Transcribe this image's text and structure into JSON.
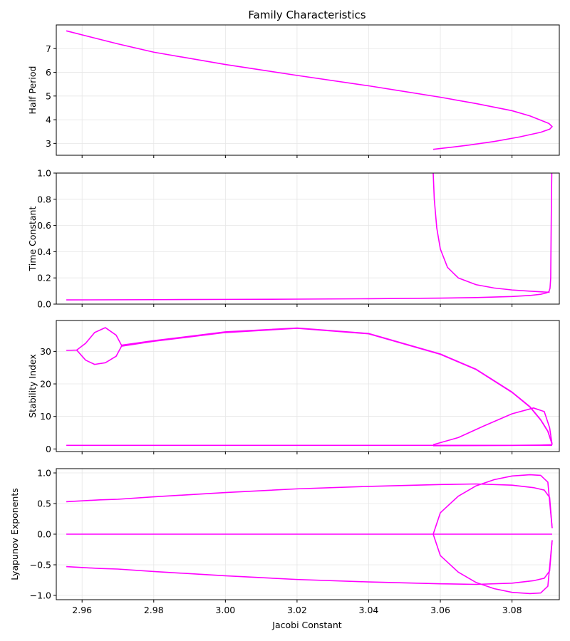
{
  "title": "Family Characteristics",
  "xlabel": "Jacobi Constant",
  "line_color": "#ff00ff",
  "chart_data": [
    {
      "type": "line",
      "ylabel": "Half Period",
      "xlim": [
        2.9528,
        3.0932
      ],
      "ylim": [
        2.5,
        8.0
      ],
      "xticks": [
        2.96,
        2.98,
        3.0,
        3.02,
        3.04,
        3.06,
        3.08
      ],
      "yticks": [
        3,
        4,
        5,
        6,
        7
      ],
      "ytick_labels": [
        "3",
        "4",
        "5",
        "6",
        "7"
      ],
      "series": [
        {
          "x": [
            2.9556,
            2.97,
            2.98,
            3.0,
            3.02,
            3.04,
            3.06,
            3.07,
            3.08,
            3.085,
            3.088,
            3.0903,
            3.0912,
            3.0905,
            3.088,
            3.082,
            3.075,
            3.068,
            3.062,
            3.058
          ],
          "y": [
            7.75,
            7.2,
            6.85,
            6.33,
            5.87,
            5.43,
            4.95,
            4.68,
            4.38,
            4.16,
            3.98,
            3.84,
            3.71,
            3.6,
            3.47,
            3.27,
            3.08,
            2.93,
            2.82,
            2.75
          ]
        }
      ]
    },
    {
      "type": "line",
      "ylabel": "Time Constant",
      "xlim": [
        2.9528,
        3.0932
      ],
      "ylim": [
        0.0,
        1.0
      ],
      "xticks": [
        2.96,
        2.98,
        3.0,
        3.02,
        3.04,
        3.06,
        3.08
      ],
      "yticks": [
        0.0,
        0.2,
        0.4,
        0.6,
        0.8,
        1.0
      ],
      "ytick_labels": [
        "0.0",
        "0.2",
        "0.4",
        "0.6",
        "0.8",
        "1.0"
      ],
      "series": [
        {
          "x": [
            2.9556,
            2.98,
            3.0,
            3.02,
            3.04,
            3.06,
            3.07,
            3.08,
            3.085,
            3.088,
            3.0895,
            3.0903,
            3.0906,
            3.0908,
            3.0909,
            3.091,
            3.0911
          ],
          "y": [
            0.032,
            0.034,
            0.036,
            0.038,
            0.041,
            0.046,
            0.05,
            0.058,
            0.066,
            0.075,
            0.085,
            0.095,
            0.12,
            0.2,
            0.5,
            0.8,
            1.0
          ]
        },
        {
          "x": [
            3.058,
            3.0583,
            3.059,
            3.06,
            3.062,
            3.065,
            3.07,
            3.075,
            3.08,
            3.085,
            3.088,
            3.0905
          ],
          "y": [
            1.0,
            0.8,
            0.58,
            0.42,
            0.28,
            0.2,
            0.148,
            0.123,
            0.108,
            0.099,
            0.094,
            0.09
          ]
        }
      ]
    },
    {
      "type": "line",
      "ylabel": "Stability Index",
      "xlim": [
        2.9528,
        3.0932
      ],
      "ylim": [
        -0.8,
        39.5
      ],
      "xticks": [
        2.96,
        2.98,
        3.0,
        3.02,
        3.04,
        3.06,
        3.08
      ],
      "yticks": [
        0,
        10,
        20,
        30
      ],
      "ytick_labels": [
        "0",
        "10",
        "20",
        "30"
      ],
      "series": [
        {
          "x": [
            2.9556,
            2.9585,
            2.961,
            2.9635,
            2.9665,
            2.9695,
            2.971,
            2.98,
            3.0,
            3.02,
            3.04,
            3.06,
            3.07,
            3.08,
            3.085,
            3.088,
            3.09,
            3.0912
          ],
          "y": [
            30.3,
            30.4,
            32.5,
            35.8,
            37.3,
            35.0,
            31.9,
            33.3,
            36.0,
            37.2,
            35.5,
            29.2,
            24.5,
            17.5,
            13.0,
            9.0,
            5.5,
            1.5
          ]
        },
        {
          "x": [
            2.9585,
            2.961,
            2.9635,
            2.9665,
            2.9695,
            2.971,
            2.98,
            3.0,
            3.02,
            3.04,
            3.06,
            3.07,
            3.08,
            3.085,
            3.088,
            3.09,
            3.0912
          ],
          "y": [
            30.4,
            27.3,
            26.0,
            26.5,
            28.5,
            31.6,
            33.1,
            35.8,
            37.1,
            35.4,
            29.1,
            24.4,
            17.4,
            12.9,
            8.9,
            5.4,
            1.4
          ]
        },
        {
          "x": [
            2.9556,
            2.98,
            3.0,
            3.04,
            3.06,
            3.08,
            3.09,
            3.0912
          ],
          "y": [
            1.1,
            1.1,
            1.1,
            1.1,
            1.1,
            1.1,
            1.1,
            1.1
          ]
        },
        {
          "x": [
            3.058,
            3.065,
            3.072,
            3.08,
            3.086,
            3.089,
            3.0905,
            3.0912
          ],
          "y": [
            1.3,
            3.5,
            7.0,
            10.8,
            12.6,
            11.5,
            6.5,
            1.3
          ]
        },
        {
          "x": [
            3.058,
            3.07,
            3.08,
            3.088,
            3.0912
          ],
          "y": [
            1.0,
            1.05,
            1.1,
            1.2,
            1.3
          ]
        }
      ]
    },
    {
      "type": "line",
      "ylabel": "Lyapunov Exponents",
      "xlim": [
        2.9528,
        3.0932
      ],
      "ylim": [
        -1.07,
        1.07
      ],
      "xticks": [
        2.96,
        2.98,
        3.0,
        3.02,
        3.04,
        3.06,
        3.08
      ],
      "yticks": [
        -1.0,
        -0.5,
        0.0,
        0.5,
        1.0
      ],
      "ytick_labels": [
        "−1.0",
        "−0.5",
        "0.0",
        "0.5",
        "1.0"
      ],
      "series": [
        {
          "x": [
            2.9556,
            2.96,
            2.965,
            2.97,
            2.98,
            3.0,
            3.02,
            3.04,
            3.06,
            3.07,
            3.08,
            3.086,
            3.089,
            3.0905,
            3.0912
          ],
          "y": [
            0.53,
            0.545,
            0.56,
            0.57,
            0.61,
            0.68,
            0.74,
            0.78,
            0.81,
            0.82,
            0.8,
            0.76,
            0.72,
            0.6,
            0.1
          ]
        },
        {
          "x": [
            2.9556,
            2.96,
            2.965,
            2.97,
            2.98,
            3.0,
            3.02,
            3.04,
            3.06,
            3.07,
            3.08,
            3.086,
            3.089,
            3.0905,
            3.0912
          ],
          "y": [
            -0.53,
            -0.545,
            -0.56,
            -0.57,
            -0.61,
            -0.68,
            -0.74,
            -0.78,
            -0.81,
            -0.82,
            -0.8,
            -0.76,
            -0.72,
            -0.6,
            -0.1
          ]
        },
        {
          "x": [
            2.9556,
            2.98,
            3.0,
            3.04,
            3.058,
            3.07,
            3.08,
            3.09,
            3.0912
          ],
          "y": [
            0.0,
            0.0,
            0.0,
            0.0,
            0.0,
            0.0,
            0.0,
            0.0,
            0.0
          ]
        },
        {
          "x": [
            3.058,
            3.06,
            3.065,
            3.07,
            3.075,
            3.08,
            3.085,
            3.088,
            3.09,
            3.0912
          ],
          "y": [
            0.0,
            0.35,
            0.62,
            0.79,
            0.89,
            0.95,
            0.97,
            0.96,
            0.85,
            0.1
          ]
        },
        {
          "x": [
            3.058,
            3.06,
            3.065,
            3.07,
            3.075,
            3.08,
            3.085,
            3.088,
            3.09,
            3.0912
          ],
          "y": [
            0.0,
            -0.35,
            -0.62,
            -0.79,
            -0.89,
            -0.95,
            -0.97,
            -0.96,
            -0.85,
            -0.1
          ]
        }
      ]
    }
  ]
}
